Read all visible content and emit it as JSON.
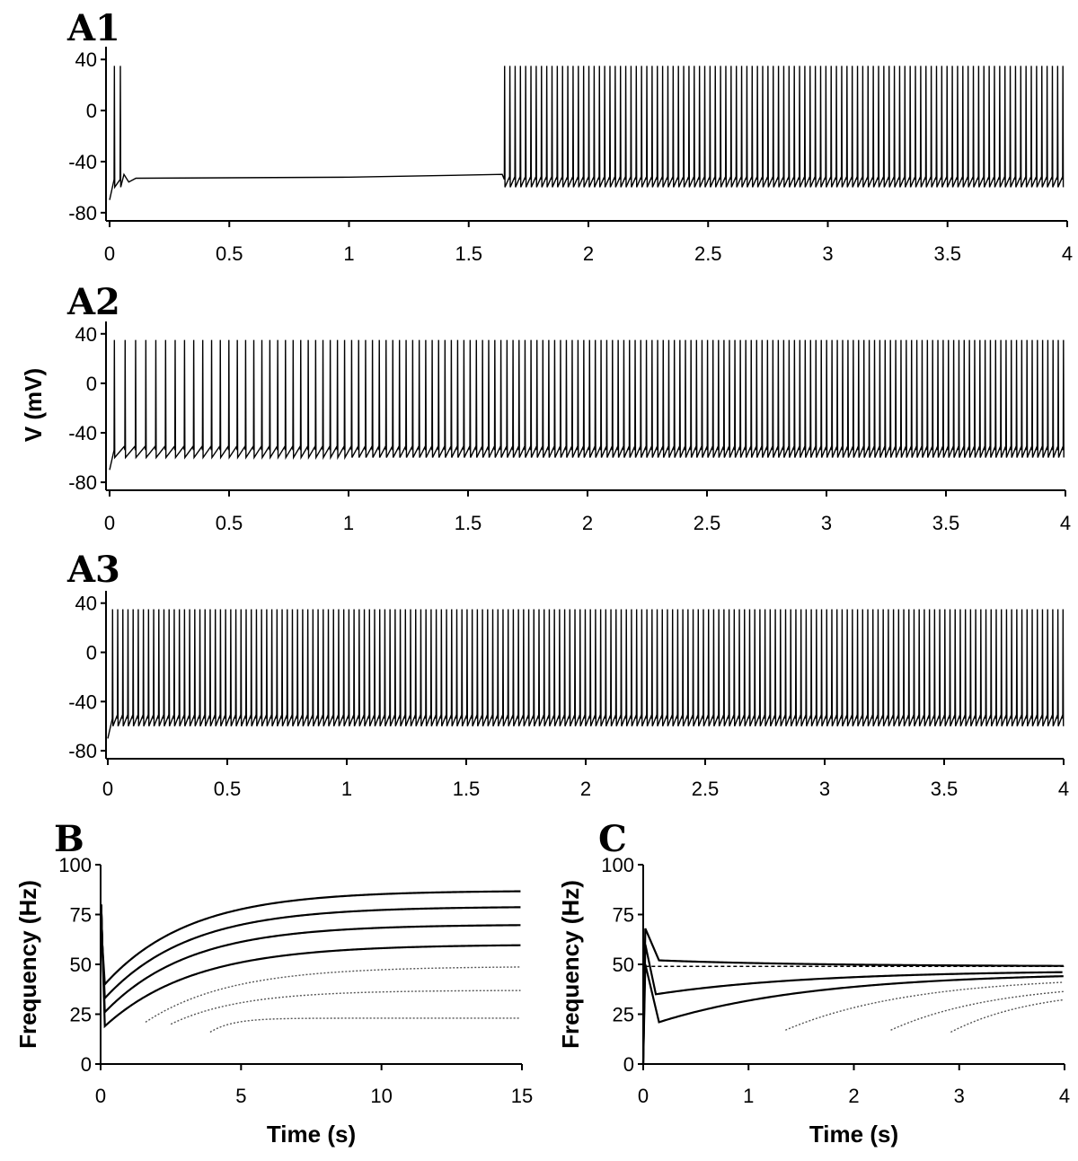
{
  "chart_data": [
    {
      "id": "A1",
      "panel_label": "A1",
      "type": "line",
      "xlim": [
        0,
        4
      ],
      "ylim": [
        -85,
        50
      ],
      "xticks": [
        "0",
        "0.5",
        "1",
        "1.5",
        "2",
        "2.5",
        "3",
        "3.5",
        "4"
      ],
      "yticks": [
        "40",
        "0",
        "-40",
        "-80"
      ],
      "ylabel": "",
      "xlabel": "",
      "series": [
        {
          "kind": "spike_train",
          "start_v": -70,
          "peak_v": 35,
          "trough_v": -60,
          "rest_v": -53,
          "initial_spikes_s": [
            0.02,
            0.045
          ],
          "quiescent_until_s": 1.65,
          "isi_start_s": 0.022,
          "isi_end_s": 0.021,
          "end_s": 4
        }
      ]
    },
    {
      "id": "A2",
      "panel_label": "A2",
      "type": "line",
      "xlim": [
        0,
        4
      ],
      "ylim": [
        -85,
        50
      ],
      "xticks": [
        "0",
        "0.5",
        "1",
        "1.5",
        "2",
        "2.5",
        "3",
        "3.5",
        "4"
      ],
      "yticks": [
        "40",
        "0",
        "-40",
        "-80"
      ],
      "ylabel": "V (mV)",
      "xlabel": "",
      "series": [
        {
          "kind": "spike_train",
          "start_v": -70,
          "peak_v": 35,
          "trough_v": -60,
          "first_spike_s": 0.02,
          "isi_start_s": 0.045,
          "isi_end_s": 0.0215,
          "isi_tau_s": 0.9,
          "end_s": 4
        }
      ]
    },
    {
      "id": "A3",
      "panel_label": "A3",
      "type": "line",
      "xlim": [
        0,
        4
      ],
      "ylim": [
        -85,
        50
      ],
      "xticks": [
        "0",
        "0.5",
        "1",
        "1.5",
        "2",
        "2.5",
        "3",
        "3.5",
        "4"
      ],
      "yticks": [
        "40",
        "0",
        "-40",
        "-80"
      ],
      "ylabel": "",
      "xlabel": "",
      "series": [
        {
          "kind": "spike_train",
          "start_v": -70,
          "peak_v": 35,
          "trough_v": -60,
          "first_spike_s": 0.02,
          "isi_start_s": 0.0215,
          "isi_end_s": 0.0215,
          "isi_tau_s": 1,
          "end_s": 4
        }
      ]
    },
    {
      "id": "B",
      "panel_label": "B",
      "type": "line",
      "xlim": [
        0,
        15
      ],
      "ylim": [
        0,
        100
      ],
      "xticks": [
        "0",
        "5",
        "10",
        "15"
      ],
      "yticks": [
        "0",
        "25",
        "50",
        "75",
        "100"
      ],
      "xlabel": "Time (s)",
      "ylabel": "Frequency (Hz)",
      "series": [
        {
          "style": "solid",
          "start_s": 0.15,
          "start_hz": 40,
          "final_hz": 87,
          "tau_s": 3.0
        },
        {
          "style": "solid",
          "start_s": 0.15,
          "start_hz": 33,
          "final_hz": 79,
          "tau_s": 3.0
        },
        {
          "style": "solid",
          "start_s": 0.15,
          "start_hz": 26,
          "final_hz": 70,
          "tau_s": 3.0
        },
        {
          "style": "solid",
          "start_s": 0.15,
          "start_hz": 19,
          "final_hz": 60,
          "tau_s": 3.2
        },
        {
          "style": "dotted",
          "start_s": 1.6,
          "start_hz": 21,
          "final_hz": 49,
          "tau_s": 3.0
        },
        {
          "style": "dotted",
          "start_s": 2.5,
          "start_hz": 20,
          "final_hz": 37,
          "tau_s": 2.5
        },
        {
          "style": "dotted",
          "start_s": 3.9,
          "start_hz": 16,
          "final_hz": 23,
          "tau_s": 0.8
        }
      ]
    },
    {
      "id": "C",
      "panel_label": "C",
      "type": "line",
      "xlim": [
        0,
        4
      ],
      "ylim": [
        0,
        100
      ],
      "xticks": [
        "0",
        "1",
        "2",
        "3",
        "4"
      ],
      "yticks": [
        "0",
        "25",
        "50",
        "75",
        "100"
      ],
      "xlabel": "Time (s)",
      "ylabel": "Frequency (Hz)",
      "reference_hz": 49,
      "series": [
        {
          "style": "solid",
          "onset_s": 0.02,
          "peak_hz": 68,
          "dip_s": 0.15,
          "dip_hz": 52,
          "final_hz": 49,
          "tau_s": 1.5
        },
        {
          "style": "solid",
          "onset_s": 0.02,
          "peak_hz": 60,
          "dip_s": 0.12,
          "dip_hz": 35,
          "final_hz": 47,
          "tau_s": 1.5
        },
        {
          "style": "solid",
          "onset_s": 0.02,
          "peak_hz": 50,
          "dip_s": 0.15,
          "dip_hz": 21,
          "final_hz": 46,
          "tau_s": 1.5
        },
        {
          "style": "dotted",
          "start_s": 1.35,
          "start_hz": 17,
          "final_hz": 44,
          "tau_s": 1.2
        },
        {
          "style": "dotted",
          "start_s": 2.35,
          "start_hz": 17,
          "final_hz": 41,
          "tau_s": 1.0
        },
        {
          "style": "dotted",
          "start_s": 2.92,
          "start_hz": 16,
          "final_hz": 38,
          "tau_s": 0.8
        }
      ]
    }
  ]
}
